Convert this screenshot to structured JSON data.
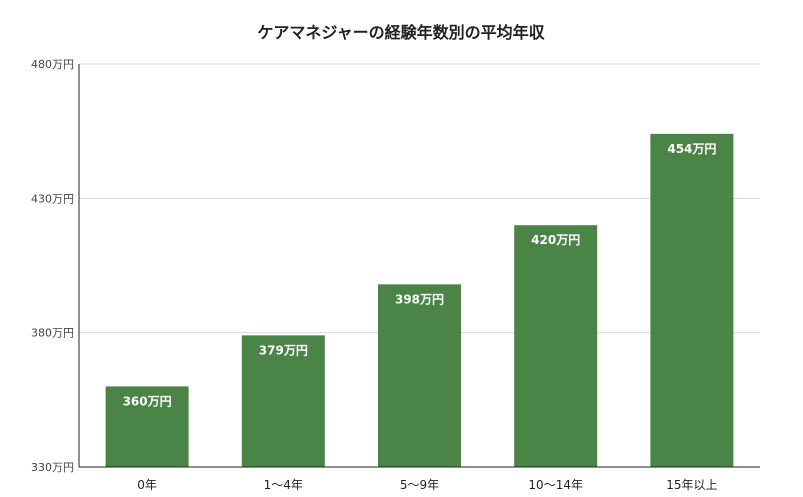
{
  "chart_data": {
    "type": "bar",
    "title": "ケアマネジャーの経験年数別の平均年収",
    "xlabel": "",
    "ylabel": "",
    "categories": [
      "0年",
      "1〜4年",
      "5〜9年",
      "10〜14年",
      "15年以上"
    ],
    "values": [
      360,
      379,
      398,
      420,
      454
    ],
    "data_labels": [
      "360万円",
      "379万円",
      "398万円",
      "420万円",
      "454万円"
    ],
    "ylim": [
      330,
      480
    ],
    "yticks": [
      330,
      380,
      430,
      480
    ],
    "ytick_labels": [
      "330万円",
      "380万円",
      "430万円",
      "480万円"
    ],
    "grid": true,
    "legend": "none",
    "colors": {
      "bar": "#4a8447",
      "grid": "#d9d9d9",
      "axis": "#222222"
    }
  }
}
